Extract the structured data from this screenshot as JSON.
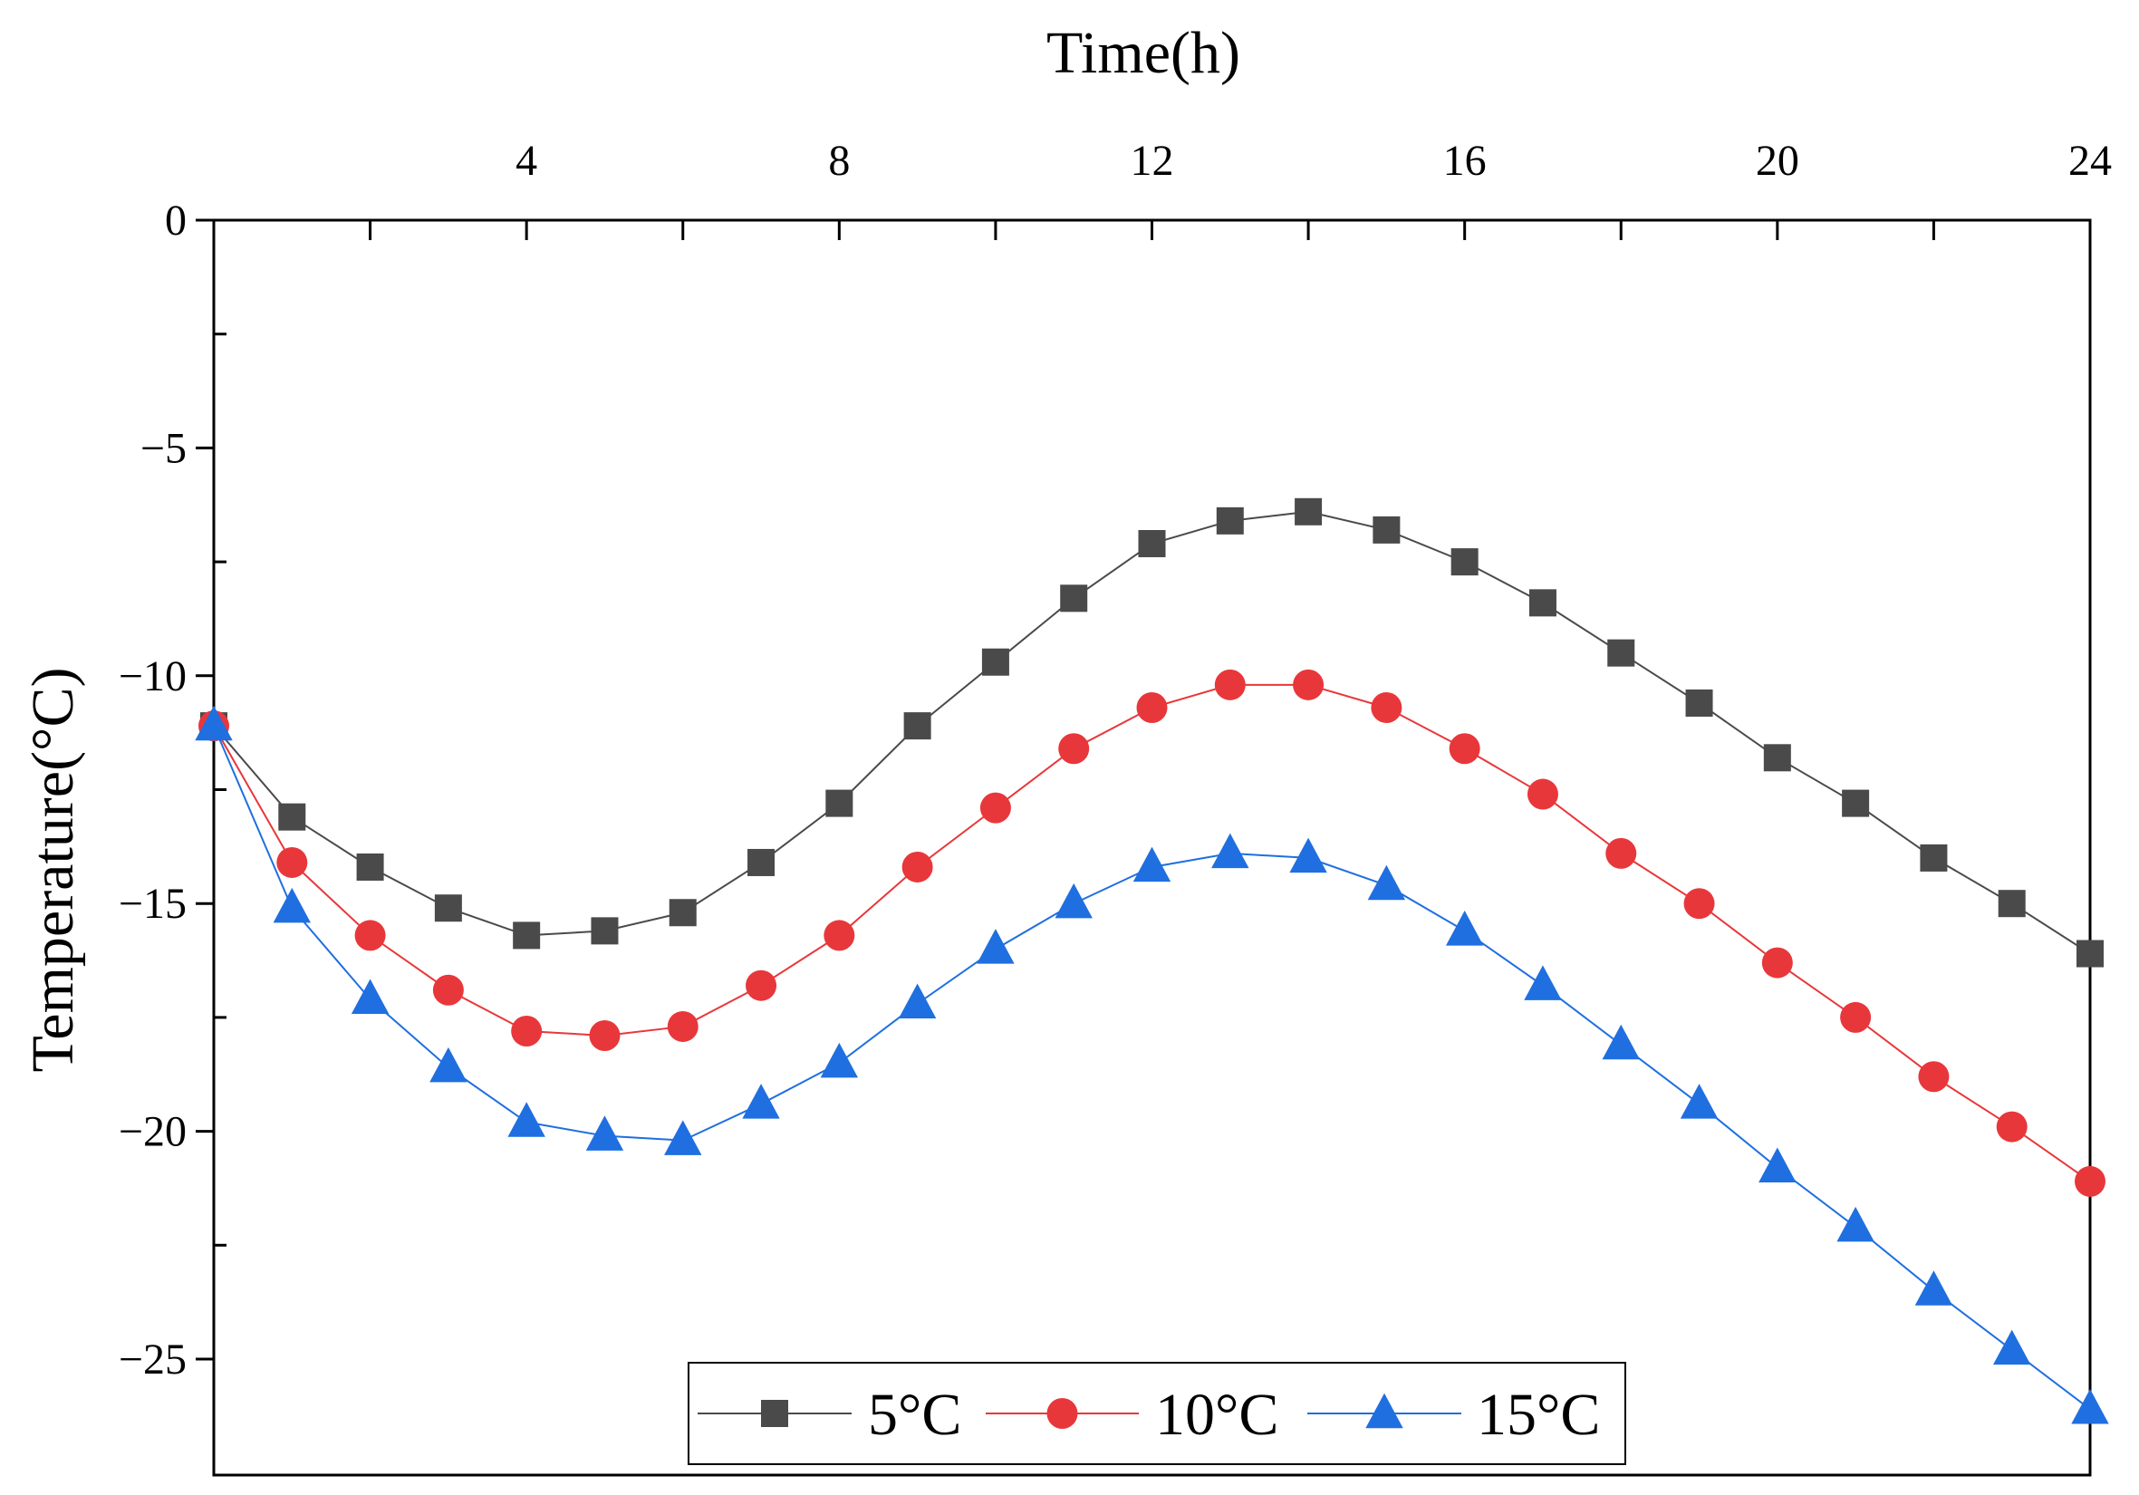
{
  "chart_data": {
    "type": "line",
    "xlabel": "Time(h)",
    "ylabel": "Temperature(°C)",
    "x_axis_position": "top",
    "xlim": [
      0,
      24
    ],
    "ylim": [
      -27,
      0
    ],
    "x_ticks": [
      4,
      8,
      12,
      16,
      20,
      24
    ],
    "x_tick_labels": [
      "4",
      "8",
      "12",
      "16",
      "20",
      "24"
    ],
    "y_ticks": [
      0,
      -5,
      -10,
      -15,
      -20,
      -25
    ],
    "y_tick_labels": [
      "0",
      "−5",
      "−10",
      "−15",
      "−20",
      "−25"
    ],
    "grid": false,
    "legend_position": "bottom-center",
    "x": [
      0,
      1,
      2,
      3,
      4,
      5,
      6,
      7,
      8,
      9,
      10,
      11,
      12,
      13,
      14,
      15,
      16,
      17,
      18,
      19,
      20,
      21,
      22,
      23,
      24
    ],
    "series": [
      {
        "name": "5°C",
        "color": "#4a4a4a",
        "marker": "square",
        "values": [
          -11.1,
          -13.1,
          -14.2,
          -15.1,
          -15.7,
          -15.6,
          -15.2,
          -14.1,
          -12.8,
          -11.1,
          -9.7,
          -8.3,
          -7.1,
          -6.6,
          -6.4,
          -6.8,
          -7.5,
          -8.4,
          -9.5,
          -10.6,
          -11.8,
          -12.8,
          -14.0,
          -15.0,
          -16.1
        ]
      },
      {
        "name": "10°C",
        "color": "#e8373a",
        "marker": "circle",
        "values": [
          -11.1,
          -14.1,
          -15.7,
          -16.9,
          -17.8,
          -17.9,
          -17.7,
          -16.8,
          -15.7,
          -14.2,
          -12.9,
          -11.6,
          -10.7,
          -10.2,
          -10.2,
          -10.7,
          -11.6,
          -12.6,
          -13.9,
          -15.0,
          -16.3,
          -17.5,
          -18.8,
          -19.9,
          -21.1
        ]
      },
      {
        "name": "15°C",
        "color": "#1f6fe0",
        "marker": "triangle",
        "values": [
          -11.1,
          -15.1,
          -17.1,
          -18.6,
          -19.8,
          -20.1,
          -20.2,
          -19.4,
          -18.5,
          -17.2,
          -16.0,
          -15.0,
          -14.2,
          -13.9,
          -14.0,
          -14.6,
          -15.6,
          -16.8,
          -18.1,
          -19.4,
          -20.8,
          -22.1,
          -23.5,
          -24.8,
          -26.1
        ]
      }
    ]
  }
}
